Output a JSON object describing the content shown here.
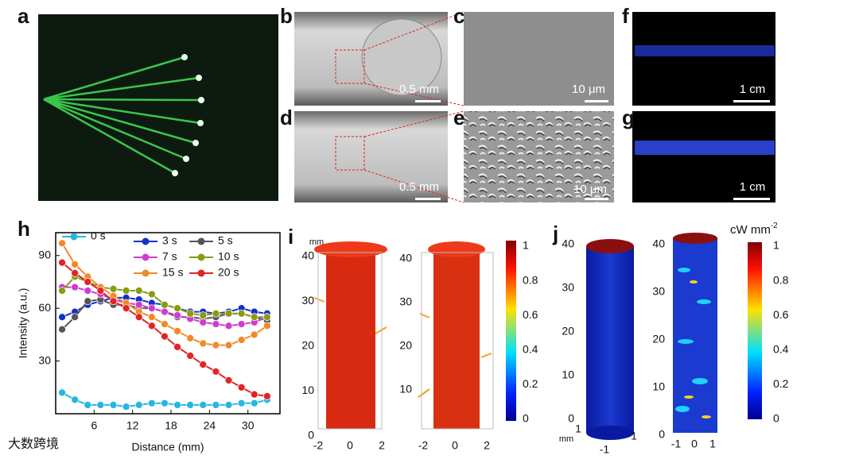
{
  "panel_labels": [
    "a",
    "b",
    "c",
    "d",
    "e",
    "f",
    "g",
    "h",
    "i",
    "j"
  ],
  "scale_bars": {
    "b": "0.5 mm",
    "c": "10 μm",
    "d": "0.5 mm",
    "e": "10 μm",
    "f": "1 cm",
    "g": "1 cm"
  },
  "chart_data": {
    "type": "line",
    "xlabel": "Distance (mm)",
    "ylabel": "Intensity (a.u.)",
    "x": [
      1,
      3,
      5,
      7,
      9,
      11,
      13,
      15,
      17,
      19,
      21,
      23,
      25,
      27,
      29,
      31,
      33
    ],
    "xlim": [
      0,
      35
    ],
    "xticks": [
      6,
      12,
      18,
      24,
      30
    ],
    "ylim": [
      0,
      103
    ],
    "yticks": [
      30,
      60,
      90
    ],
    "series": [
      {
        "name": "0 s",
        "color": "#27b6e0",
        "values": [
          12,
          8,
          5,
          5,
          5,
          4,
          5,
          6,
          6,
          5,
          5,
          5,
          5,
          5,
          6,
          6,
          8
        ]
      },
      {
        "name": "3 s",
        "color": "#1530c8",
        "values": [
          55,
          58,
          62,
          64,
          66,
          66,
          65,
          63,
          62,
          60,
          58,
          58,
          57,
          58,
          60,
          58,
          57
        ]
      },
      {
        "name": "5 s",
        "color": "#555555",
        "values": [
          48,
          55,
          64,
          65,
          62,
          62,
          60,
          60,
          58,
          55,
          55,
          54,
          55,
          57,
          57,
          55,
          53
        ]
      },
      {
        "name": "7 s",
        "color": "#d03bd0",
        "values": [
          72,
          72,
          70,
          68,
          65,
          63,
          62,
          60,
          58,
          56,
          54,
          52,
          51,
          50,
          51,
          52,
          55
        ]
      },
      {
        "name": "10 s",
        "color": "#8a9a15",
        "values": [
          70,
          78,
          75,
          72,
          71,
          70,
          70,
          68,
          62,
          60,
          57,
          56,
          57,
          57,
          57,
          55,
          55
        ]
      },
      {
        "name": "15 s",
        "color": "#f08a2a",
        "values": [
          97,
          85,
          78,
          72,
          67,
          63,
          58,
          55,
          51,
          47,
          43,
          40,
          39,
          39,
          42,
          45,
          50
        ]
      },
      {
        "name": "20 s",
        "color": "#e02525",
        "values": [
          86,
          80,
          75,
          70,
          64,
          60,
          55,
          50,
          44,
          38,
          33,
          28,
          24,
          19,
          15,
          11,
          10
        ]
      }
    ]
  },
  "panel_i": {
    "axis_unit": "mm",
    "left_zticks": [
      0,
      10,
      20,
      30,
      40
    ],
    "left_xticks": [
      -2,
      0,
      2
    ],
    "right_zticks": [
      10,
      20,
      30,
      40
    ],
    "right_xticks": [
      -2,
      0,
      2
    ],
    "colorbar_ticks": [
      1,
      0.8,
      0.6,
      0.4,
      0.2,
      0
    ]
  },
  "panel_j": {
    "axis_unit": "mm",
    "left_zticks": [
      0,
      10,
      20,
      30,
      40
    ],
    "left_bottom_ticks": [
      1,
      -1,
      1
    ],
    "right_zticks": [
      0,
      10,
      20,
      30,
      40
    ],
    "right_xticks": [
      -1,
      0,
      1
    ],
    "colorbar_title": {
      "text": "cW mm",
      "superscript": "-2"
    },
    "colorbar_ticks": [
      1,
      0.8,
      0.6,
      0.4,
      0.2,
      0
    ]
  },
  "watermark": "大数跨境"
}
